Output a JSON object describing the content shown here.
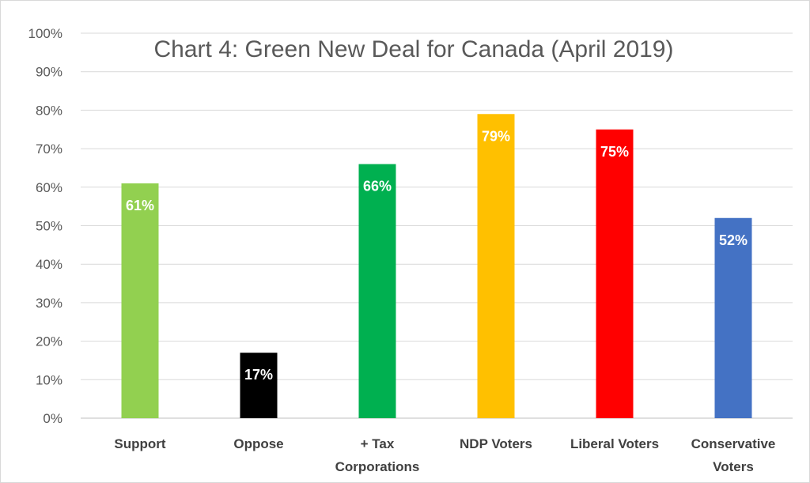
{
  "chart_data": {
    "type": "bar",
    "title": "Chart 4: Green New Deal for Canada (April 2019)",
    "categories": [
      "Support",
      "Oppose",
      "+ Tax Corporations",
      "NDP Voters",
      "Liberal Voters",
      "Conservative Voters"
    ],
    "category_lines": [
      [
        "Support"
      ],
      [
        "Oppose"
      ],
      [
        "+ Tax",
        "Corporations"
      ],
      [
        "NDP Voters"
      ],
      [
        "Liberal Voters"
      ],
      [
        "Conservative",
        "Voters"
      ]
    ],
    "values": [
      61,
      17,
      66,
      79,
      75,
      52
    ],
    "data_labels": [
      "61%",
      "17%",
      "66%",
      "79%",
      "75%",
      "52%"
    ],
    "colors": [
      "#92d050",
      "#000000",
      "#00b050",
      "#ffc000",
      "#ff0000",
      "#4472c4"
    ],
    "ylim": [
      0,
      100
    ],
    "yticks": [
      0,
      10,
      20,
      30,
      40,
      50,
      60,
      70,
      80,
      90,
      100
    ],
    "ytick_labels": [
      "0%",
      "10%",
      "20%",
      "30%",
      "40%",
      "50%",
      "60%",
      "70%",
      "80%",
      "90%",
      "100%"
    ],
    "grid": true,
    "legend": "none",
    "xlabel": "",
    "ylabel": ""
  }
}
